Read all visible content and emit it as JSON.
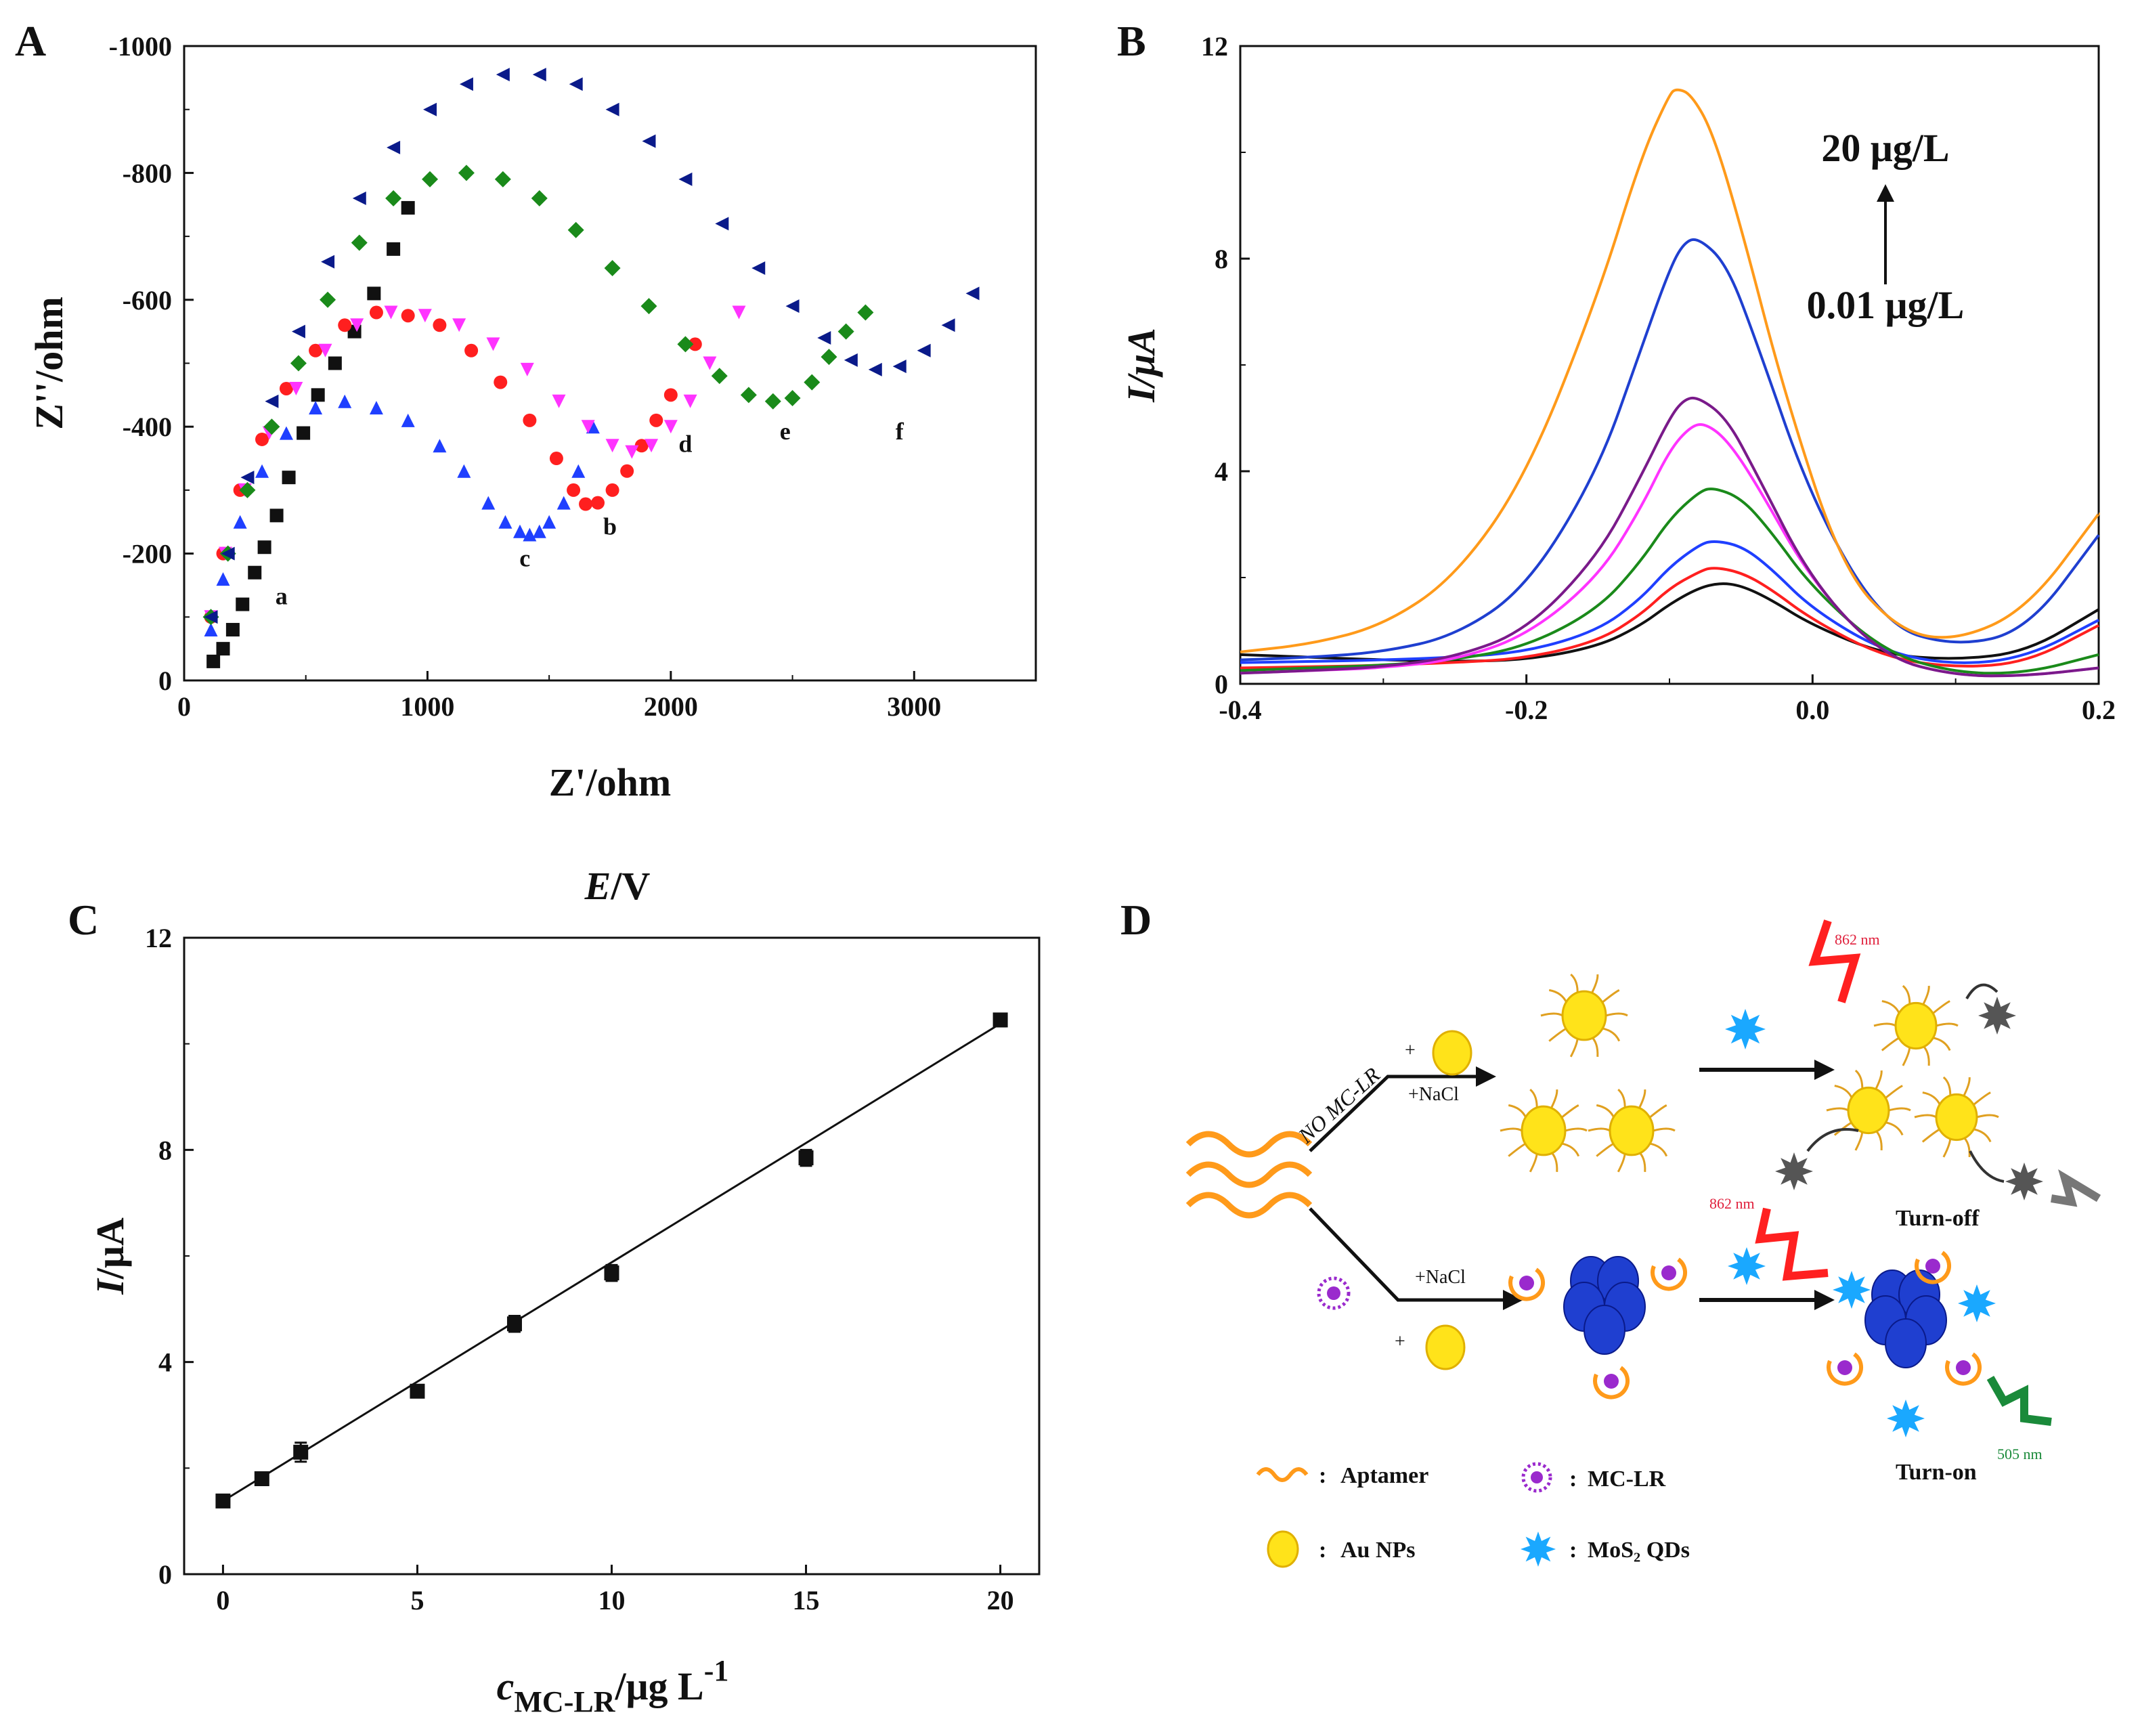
{
  "colors": {
    "black": "#111111",
    "red": "#ff1f1f",
    "blue": "#1f3fff",
    "magenta": "#ff33ff",
    "green": "#1a8a1a",
    "navy": "#0a1a8a",
    "orange": "#ff9a1a",
    "purple": "#7a1a8a",
    "mediumblue": "#1f3fd0",
    "pink": "#ff44cc",
    "darkgreen": "#1a7a2a",
    "au_yellow": "#ffe31a",
    "aptamer": "#ff9a1a",
    "mos2": "#1aa8ff",
    "mclr": "#9a2acd",
    "gray": "#555555",
    "laser_red": "#ff2020",
    "laser_green": "#1a8a3a"
  },
  "chart_data": [
    {
      "panel": "A",
      "type": "scatter",
      "title": "",
      "xlabel": "Z'/ohm",
      "ylabel": "Z''/ohm",
      "xlim": [
        0,
        3500
      ],
      "ylim": [
        0,
        -1000
      ],
      "xticks": [
        0,
        1000,
        2000,
        3000
      ],
      "yticks": [
        0,
        -200,
        -400,
        -600,
        -800,
        -1000
      ],
      "series": [
        {
          "name": "a",
          "marker": "square",
          "color": "#111111",
          "x": [
            120,
            160,
            200,
            240,
            290,
            330,
            380,
            430,
            490,
            550,
            620,
            700,
            780,
            860,
            920
          ],
          "y": [
            -30,
            -50,
            -80,
            -120,
            -170,
            -210,
            -260,
            -320,
            -390,
            -450,
            -500,
            -550,
            -610,
            -680,
            -745
          ],
          "label_at": [
            400,
            -120
          ]
        },
        {
          "name": "b",
          "marker": "circle",
          "color": "#ff1f1f",
          "x": [
            110,
            160,
            230,
            320,
            420,
            540,
            660,
            790,
            920,
            1050,
            1180,
            1300,
            1420,
            1530,
            1600,
            1650,
            1700,
            1760,
            1820,
            1880,
            1940,
            2000,
            2100
          ],
          "y": [
            -100,
            -200,
            -300,
            -380,
            -460,
            -520,
            -560,
            -580,
            -575,
            -560,
            -520,
            -470,
            -410,
            -350,
            -300,
            -278,
            -280,
            -300,
            -330,
            -370,
            -410,
            -450,
            -530
          ],
          "label_at": [
            1750,
            -230
          ]
        },
        {
          "name": "c",
          "marker": "triangle-up",
          "color": "#1f3fff",
          "x": [
            110,
            160,
            230,
            320,
            420,
            540,
            660,
            790,
            920,
            1050,
            1150,
            1250,
            1320,
            1380,
            1420,
            1460,
            1500,
            1560,
            1620,
            1680
          ],
          "y": [
            -80,
            -160,
            -250,
            -330,
            -390,
            -430,
            -440,
            -430,
            -410,
            -370,
            -330,
            -280,
            -250,
            -235,
            -230,
            -235,
            -250,
            -280,
            -330,
            -400
          ],
          "label_at": [
            1400,
            -180
          ]
        },
        {
          "name": "d",
          "marker": "triangle-down",
          "color": "#ff33ff",
          "x": [
            110,
            170,
            250,
            350,
            460,
            580,
            710,
            850,
            990,
            1130,
            1270,
            1410,
            1540,
            1660,
            1760,
            1840,
            1920,
            2000,
            2080,
            2160,
            2280
          ],
          "y": [
            -100,
            -200,
            -300,
            -390,
            -460,
            -520,
            -560,
            -580,
            -575,
            -560,
            -530,
            -490,
            -440,
            -400,
            -370,
            -360,
            -370,
            -400,
            -440,
            -500,
            -580
          ],
          "label_at": [
            2060,
            -360
          ]
        },
        {
          "name": "e",
          "marker": "diamond",
          "color": "#1a8a1a",
          "x": [
            110,
            180,
            260,
            360,
            470,
            590,
            720,
            860,
            1010,
            1160,
            1310,
            1460,
            1610,
            1760,
            1910,
            2060,
            2200,
            2320,
            2420,
            2500,
            2580,
            2650,
            2720,
            2800
          ],
          "y": [
            -100,
            -200,
            -300,
            -400,
            -500,
            -600,
            -690,
            -760,
            -790,
            -800,
            -790,
            -760,
            -710,
            -650,
            -590,
            -530,
            -480,
            -450,
            -440,
            -445,
            -470,
            -510,
            -550,
            -580
          ],
          "label_at": [
            2470,
            -380
          ]
        },
        {
          "name": "f",
          "marker": "triangle-left",
          "color": "#0a1a8a",
          "x": [
            110,
            180,
            260,
            360,
            470,
            590,
            720,
            860,
            1010,
            1160,
            1310,
            1460,
            1610,
            1760,
            1910,
            2060,
            2210,
            2360,
            2500,
            2630,
            2740,
            2840,
            2940,
            3040,
            3140,
            3240
          ],
          "y": [
            -100,
            -200,
            -320,
            -440,
            -550,
            -660,
            -760,
            -840,
            -900,
            -940,
            -955,
            -955,
            -940,
            -900,
            -850,
            -790,
            -720,
            -650,
            -590,
            -540,
            -505,
            -490,
            -495,
            -520,
            -560,
            -610
          ],
          "label_at": [
            2940,
            -380
          ]
        }
      ]
    },
    {
      "panel": "B",
      "type": "line",
      "title": "",
      "xlabel": "",
      "ylabel": "I/μA",
      "xlim": [
        -0.4,
        0.2
      ],
      "ylim": [
        0,
        12
      ],
      "xticks": [
        -0.4,
        -0.2,
        0.0,
        0.2
      ],
      "yticks": [
        0,
        4,
        8,
        12
      ],
      "annotation_top": "20 μg/L",
      "annotation_bottom": "0.01 μg/L",
      "series": [
        {
          "name": "0.01",
          "color": "#111111",
          "x": [
            -0.4,
            -0.35,
            -0.3,
            -0.25,
            -0.2,
            -0.15,
            -0.12,
            -0.1,
            -0.08,
            -0.065,
            -0.05,
            -0.03,
            0.0,
            0.05,
            0.1,
            0.15,
            0.2
          ],
          "y": [
            0.55,
            0.5,
            0.45,
            0.42,
            0.45,
            0.7,
            1.1,
            1.5,
            1.8,
            1.9,
            1.85,
            1.6,
            1.1,
            0.55,
            0.45,
            0.6,
            1.4
          ]
        },
        {
          "name": "s2",
          "color": "#ff1f1f",
          "x": [
            -0.4,
            -0.35,
            -0.3,
            -0.25,
            -0.2,
            -0.15,
            -0.12,
            -0.1,
            -0.08,
            -0.07,
            -0.05,
            -0.03,
            0.0,
            0.05,
            0.1,
            0.15,
            0.2
          ],
          "y": [
            0.3,
            0.32,
            0.35,
            0.4,
            0.48,
            0.8,
            1.3,
            1.8,
            2.1,
            2.2,
            2.1,
            1.8,
            1.2,
            0.5,
            0.3,
            0.4,
            1.1
          ]
        },
        {
          "name": "s3",
          "color": "#1f3fff",
          "x": [
            -0.4,
            -0.35,
            -0.3,
            -0.25,
            -0.2,
            -0.15,
            -0.12,
            -0.1,
            -0.08,
            -0.07,
            -0.05,
            -0.03,
            0.0,
            0.05,
            0.1,
            0.15,
            0.2
          ],
          "y": [
            0.4,
            0.42,
            0.45,
            0.5,
            0.6,
            1.0,
            1.6,
            2.2,
            2.6,
            2.7,
            2.6,
            2.2,
            1.4,
            0.6,
            0.35,
            0.5,
            1.2
          ]
        },
        {
          "name": "s4",
          "color": "#1a8a1a",
          "x": [
            -0.4,
            -0.35,
            -0.3,
            -0.25,
            -0.2,
            -0.15,
            -0.12,
            -0.1,
            -0.08,
            -0.07,
            -0.05,
            -0.03,
            0.0,
            0.05,
            0.1,
            0.15,
            0.2
          ],
          "y": [
            0.25,
            0.3,
            0.35,
            0.45,
            0.7,
            1.4,
            2.3,
            3.1,
            3.6,
            3.7,
            3.5,
            2.9,
            1.8,
            0.6,
            0.2,
            0.2,
            0.55
          ]
        },
        {
          "name": "s5",
          "color": "#ff33ff",
          "x": [
            -0.4,
            -0.35,
            -0.3,
            -0.25,
            -0.2,
            -0.15,
            -0.12,
            -0.1,
            -0.085,
            -0.075,
            -0.06,
            -0.04,
            0.0,
            0.05,
            0.1,
            0.15,
            0.2
          ],
          "y": [
            0.2,
            0.25,
            0.3,
            0.45,
            0.9,
            2.0,
            3.3,
            4.4,
            4.85,
            4.9,
            4.6,
            3.8,
            1.9,
            0.5,
            0.15,
            0.15,
            0.3
          ]
        },
        {
          "name": "s6",
          "color": "#7a1a8a",
          "x": [
            -0.4,
            -0.35,
            -0.3,
            -0.25,
            -0.2,
            -0.15,
            -0.12,
            -0.1,
            -0.09,
            -0.08,
            -0.06,
            -0.04,
            0.0,
            0.05,
            0.1,
            0.15,
            0.2
          ],
          "y": [
            0.2,
            0.25,
            0.32,
            0.5,
            1.0,
            2.4,
            3.9,
            5.0,
            5.35,
            5.4,
            5.0,
            4.0,
            1.9,
            0.5,
            0.15,
            0.15,
            0.3
          ]
        },
        {
          "name": "s7",
          "color": "#1f3fd0",
          "x": [
            -0.4,
            -0.35,
            -0.3,
            -0.25,
            -0.2,
            -0.15,
            -0.12,
            -0.1,
            -0.09,
            -0.08,
            -0.06,
            -0.04,
            0.0,
            0.05,
            0.1,
            0.15,
            0.2
          ],
          "y": [
            0.45,
            0.5,
            0.6,
            0.9,
            1.8,
            4.0,
            6.3,
            7.8,
            8.3,
            8.4,
            7.9,
            6.5,
            3.4,
            1.1,
            0.7,
            1.0,
            2.8
          ]
        },
        {
          "name": "20",
          "color": "#ff9a1a",
          "x": [
            -0.4,
            -0.35,
            -0.3,
            -0.25,
            -0.2,
            -0.15,
            -0.12,
            -0.1,
            -0.095,
            -0.085,
            -0.07,
            -0.05,
            -0.02,
            0.02,
            0.06,
            0.1,
            0.15,
            0.2
          ],
          "y": [
            0.6,
            0.75,
            1.1,
            2.0,
            3.9,
            7.3,
            9.9,
            11.1,
            11.2,
            11.1,
            10.4,
            8.6,
            5.5,
            2.2,
            1.0,
            0.8,
            1.4,
            3.2
          ]
        }
      ]
    },
    {
      "panel": "C",
      "type": "scatter",
      "title": "E/V",
      "xlabel": "cMC-LR/μg L-1",
      "ylabel": "I/μA",
      "xlim": [
        -1,
        21
      ],
      "ylim": [
        0,
        12
      ],
      "xticks": [
        0,
        5,
        10,
        15,
        20
      ],
      "yticks": [
        0,
        4,
        8,
        12
      ],
      "x": [
        0,
        1,
        2,
        5,
        7.5,
        10,
        15,
        20
      ],
      "y": [
        1.38,
        1.8,
        2.3,
        3.45,
        4.72,
        5.68,
        7.85,
        10.45
      ],
      "err": [
        0.05,
        0.1,
        0.18,
        0.06,
        0.15,
        0.15,
        0.15,
        0.12
      ],
      "fit": {
        "slope": 0.45,
        "intercept": 1.38
      }
    }
  ],
  "panel_labels": {
    "a": "A",
    "b": "B",
    "c": "C",
    "d": "D"
  },
  "schematic": {
    "branch_top": "NO MC-LR",
    "plus": "+",
    "nacl_top": "+NaCl",
    "nacl_bottom": "+NaCl",
    "laser1": "862 nm",
    "laser2": "862 nm",
    "laser3": "505 nm",
    "turn_off": "Turn-off",
    "turn_on": "Turn-on",
    "legend_aptamer": "Aptamer",
    "legend_mclr": "MC-LR",
    "legend_au": "Au NPs",
    "legend_mos2": "MoS₂ QDs",
    "colon": ":"
  }
}
